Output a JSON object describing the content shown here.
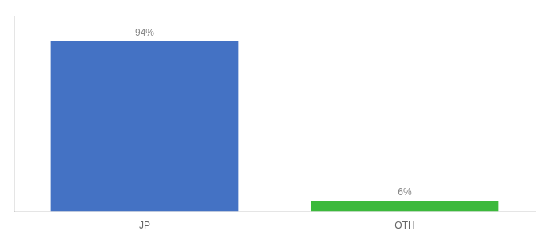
{
  "chart_data": {
    "type": "bar",
    "categories": [
      "JP",
      "OTH"
    ],
    "values": [
      94,
      6
    ],
    "value_labels": [
      "94%",
      "6%"
    ],
    "colors": [
      "#4472c4",
      "#3cb93c"
    ],
    "ylim": [
      0,
      108
    ],
    "yticks": [],
    "grid": false,
    "data_labels": true,
    "tick_labels": "x"
  }
}
